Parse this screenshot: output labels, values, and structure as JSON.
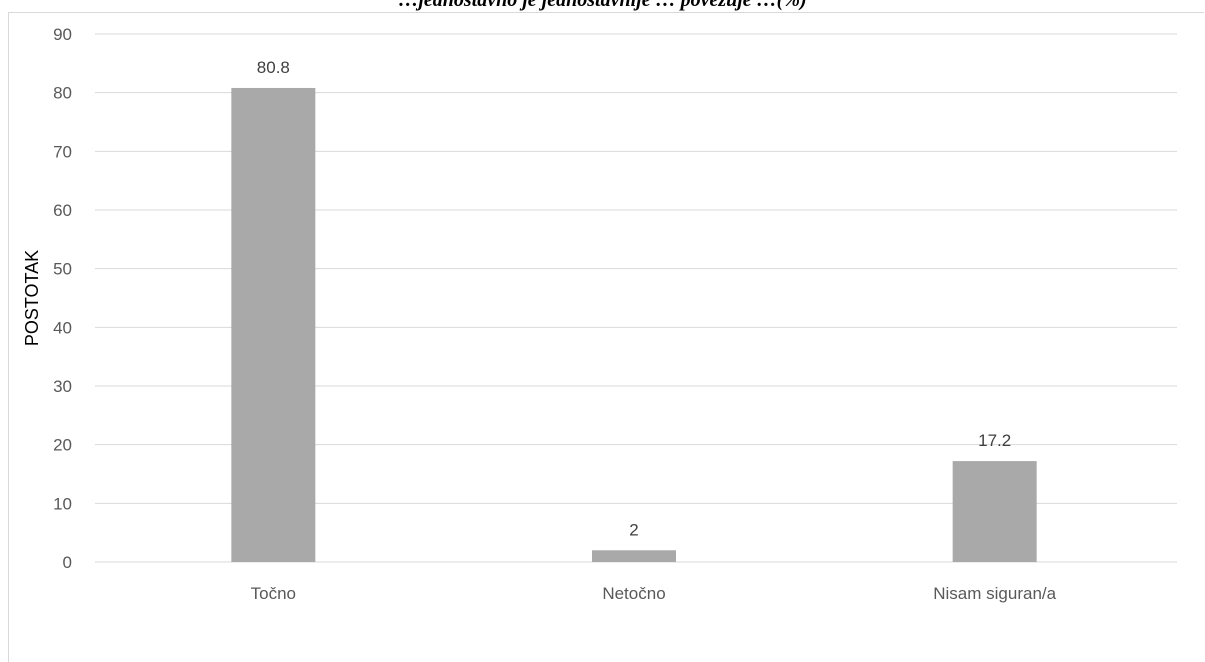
{
  "title": "…jednostavno je jednostavnije … povezuje …(%)",
  "chart_data": {
    "type": "bar",
    "categories": [
      "Točno",
      "Netočno",
      "Nisam siguran/a"
    ],
    "values": [
      80.8,
      2,
      17.2
    ],
    "data_labels": [
      "80.8",
      "2",
      "17.2"
    ],
    "ylabel": "POSTOTAK",
    "xlabel": "",
    "ylim": [
      0,
      90
    ],
    "yticks": [
      0,
      10,
      20,
      30,
      40,
      50,
      60,
      70,
      80,
      90
    ],
    "grid": true,
    "bar_color": "#a9a9a9",
    "grid_color": "#d9d9d9"
  }
}
